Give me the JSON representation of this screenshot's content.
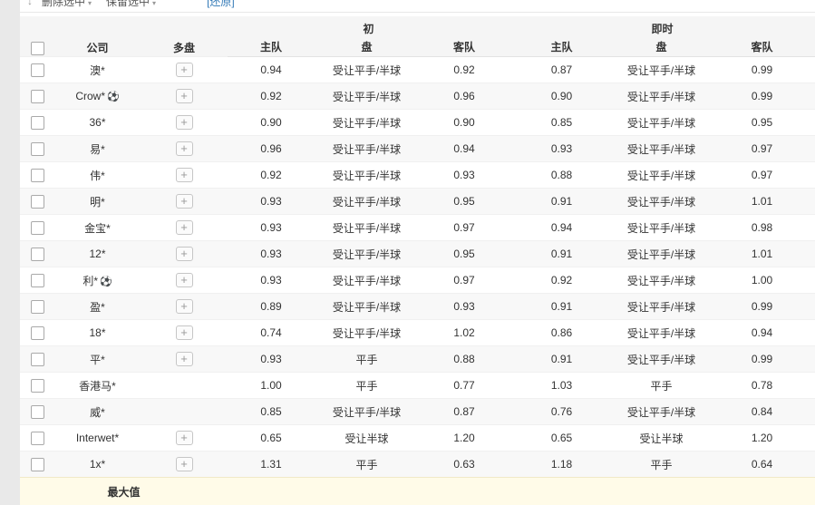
{
  "toolbar": {
    "delete_label": "删除选中",
    "keep_label": "保留选中",
    "reset_link": "[还原]",
    "sort_icon": "arrow-down-icon"
  },
  "table": {
    "group_headers": {
      "initial": "初",
      "live": "即时"
    },
    "columns": {
      "company": "公司",
      "multi": "多盘",
      "home": "主队",
      "handicap": "盘",
      "away": "客队"
    },
    "rows": [
      {
        "company": "澳*",
        "ball": false,
        "multi": true,
        "init": [
          "0.94",
          "受让平手/半球",
          "0.92"
        ],
        "live": [
          "0.87",
          "受让平手/半球",
          "0.99"
        ]
      },
      {
        "company": "Crow*",
        "ball": true,
        "multi": true,
        "init": [
          "0.92",
          "受让平手/半球",
          "0.96"
        ],
        "live": [
          "0.90",
          "受让平手/半球",
          "0.99"
        ]
      },
      {
        "company": "36*",
        "ball": false,
        "multi": true,
        "init": [
          "0.90",
          "受让平手/半球",
          "0.90"
        ],
        "live": [
          "0.85",
          "受让平手/半球",
          "0.95"
        ]
      },
      {
        "company": "易*",
        "ball": false,
        "multi": true,
        "init": [
          "0.96",
          "受让平手/半球",
          "0.94"
        ],
        "live": [
          "0.93",
          "受让平手/半球",
          "0.97"
        ]
      },
      {
        "company": "伟*",
        "ball": false,
        "multi": true,
        "init": [
          "0.92",
          "受让平手/半球",
          "0.93"
        ],
        "live": [
          "0.88",
          "受让平手/半球",
          "0.97"
        ]
      },
      {
        "company": "明*",
        "ball": false,
        "multi": true,
        "init": [
          "0.93",
          "受让平手/半球",
          "0.95"
        ],
        "live": [
          "0.91",
          "受让平手/半球",
          "1.01"
        ]
      },
      {
        "company": "金宝*",
        "ball": false,
        "multi": true,
        "init": [
          "0.93",
          "受让平手/半球",
          "0.97"
        ],
        "live": [
          "0.94",
          "受让平手/半球",
          "0.98"
        ]
      },
      {
        "company": "12*",
        "ball": false,
        "multi": true,
        "init": [
          "0.93",
          "受让平手/半球",
          "0.95"
        ],
        "live": [
          "0.91",
          "受让平手/半球",
          "1.01"
        ]
      },
      {
        "company": "利*",
        "ball": true,
        "multi": true,
        "init": [
          "0.93",
          "受让平手/半球",
          "0.97"
        ],
        "live": [
          "0.92",
          "受让平手/半球",
          "1.00"
        ]
      },
      {
        "company": "盈*",
        "ball": false,
        "multi": true,
        "init": [
          "0.89",
          "受让平手/半球",
          "0.93"
        ],
        "live": [
          "0.91",
          "受让平手/半球",
          "0.99"
        ]
      },
      {
        "company": "18*",
        "ball": false,
        "multi": true,
        "init": [
          "0.74",
          "受让平手/半球",
          "1.02"
        ],
        "live": [
          "0.86",
          "受让平手/半球",
          "0.94"
        ]
      },
      {
        "company": "平*",
        "ball": false,
        "multi": true,
        "init": [
          "0.93",
          "平手",
          "0.88"
        ],
        "live": [
          "0.91",
          "受让平手/半球",
          "0.99"
        ]
      },
      {
        "company": "香港马*",
        "ball": false,
        "multi": false,
        "init": [
          "1.00",
          "平手",
          "0.77"
        ],
        "live": [
          "1.03",
          "平手",
          "0.78"
        ]
      },
      {
        "company": "威*",
        "ball": false,
        "multi": false,
        "init": [
          "0.85",
          "受让平手/半球",
          "0.87"
        ],
        "live": [
          "0.76",
          "受让平手/半球",
          "0.84"
        ]
      },
      {
        "company": "Interwet*",
        "ball": false,
        "multi": true,
        "init": [
          "0.65",
          "受让半球",
          "1.20"
        ],
        "live": [
          "0.65",
          "受让半球",
          "1.20"
        ]
      },
      {
        "company": "1x*",
        "ball": false,
        "multi": true,
        "init": [
          "1.31",
          "平手",
          "0.63"
        ],
        "live": [
          "1.18",
          "平手",
          "0.64"
        ]
      }
    ],
    "summary_label": "最大值"
  },
  "icons": {
    "soccer_ball": "⚽",
    "plus": "+",
    "arrow_down": "↓",
    "caret_down": "▾"
  },
  "colors": {
    "link_blue": "#337ab7",
    "header_bg": "#f5f5f5",
    "alt_row_bg": "#f8f8f8",
    "summary_bg": "#fffbe8",
    "page_margin_bg": "#e9e9e9"
  }
}
